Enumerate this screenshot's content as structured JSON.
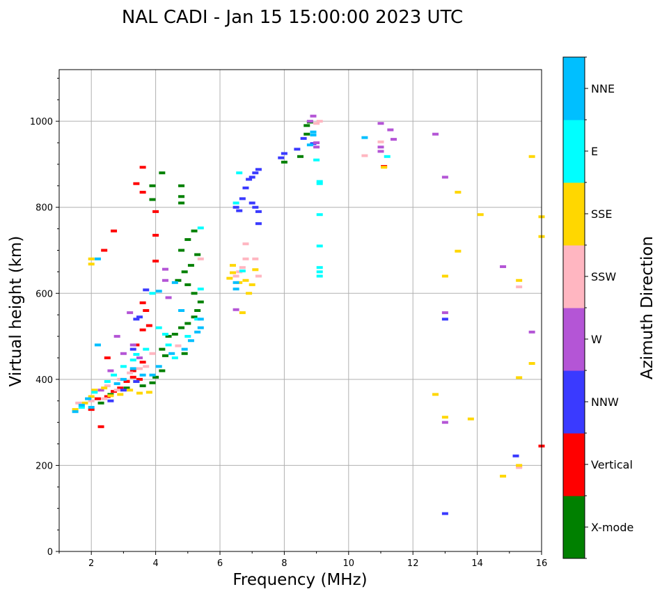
{
  "chart_data": {
    "type": "scatter",
    "title": "NAL CADI - Jan 15 15:00:00 2023 UTC",
    "xlabel": "Frequency (MHz)",
    "ylabel": "Virtual height (km)",
    "xlim": [
      1,
      16
    ],
    "ylim": [
      0,
      1120
    ],
    "xticks": [
      2,
      4,
      6,
      8,
      10,
      12,
      14,
      16
    ],
    "yticks": [
      0,
      200,
      400,
      600,
      800,
      1000
    ],
    "grid": true,
    "colorbar": {
      "label": "Azimuth Direction",
      "position": "right",
      "categories": [
        {
          "name": "X-mode",
          "color": "#008000"
        },
        {
          "name": "Vertical",
          "color": "#ff0000"
        },
        {
          "name": "NNW",
          "color": "#3a3aff"
        },
        {
          "name": "W",
          "color": "#b455d6"
        },
        {
          "name": "SSW",
          "color": "#ffb6c1"
        },
        {
          "name": "SSE",
          "color": "#ffd700"
        },
        {
          "name": "E",
          "color": "#00ffff"
        },
        {
          "name": "NNE",
          "color": "#00bfff"
        }
      ]
    },
    "series": [
      {
        "name": "X-mode",
        "points": [
          [
            2.3,
            345
          ],
          [
            2.6,
            365
          ],
          [
            3.1,
            380
          ],
          [
            3.4,
            395
          ],
          [
            3.6,
            385
          ],
          [
            3.9,
            392
          ],
          [
            4.0,
            405
          ],
          [
            4.2,
            420
          ],
          [
            4.3,
            455
          ],
          [
            4.2,
            470
          ],
          [
            4.4,
            500
          ],
          [
            4.6,
            505
          ],
          [
            4.8,
            520
          ],
          [
            4.9,
            460
          ],
          [
            5.0,
            530
          ],
          [
            5.2,
            545
          ],
          [
            5.3,
            560
          ],
          [
            5.4,
            580
          ],
          [
            5.2,
            600
          ],
          [
            5.0,
            620
          ],
          [
            4.7,
            630
          ],
          [
            4.9,
            650
          ],
          [
            5.1,
            665
          ],
          [
            5.3,
            690
          ],
          [
            4.8,
            700
          ],
          [
            5.0,
            725
          ],
          [
            5.2,
            745
          ],
          [
            4.8,
            810
          ],
          [
            4.8,
            825
          ],
          [
            4.8,
            850
          ],
          [
            4.2,
            880
          ],
          [
            3.9,
            818
          ],
          [
            3.9,
            850
          ],
          [
            8.0,
            905
          ],
          [
            8.5,
            918
          ],
          [
            8.7,
            970
          ],
          [
            8.7,
            990
          ],
          [
            8.8,
            998
          ]
        ]
      },
      {
        "name": "Vertical",
        "points": [
          [
            2.0,
            330
          ],
          [
            2.2,
            355
          ],
          [
            2.5,
            360
          ],
          [
            2.7,
            372
          ],
          [
            2.9,
            380
          ],
          [
            3.1,
            395
          ],
          [
            3.3,
            405
          ],
          [
            3.5,
            400
          ],
          [
            3.3,
            420
          ],
          [
            3.6,
            440
          ],
          [
            3.4,
            480
          ],
          [
            3.6,
            515
          ],
          [
            3.8,
            525
          ],
          [
            3.7,
            560
          ],
          [
            3.6,
            578
          ],
          [
            4.0,
            675
          ],
          [
            4.0,
            735
          ],
          [
            4.0,
            790
          ],
          [
            3.6,
            835
          ],
          [
            3.4,
            855
          ],
          [
            3.6,
            893
          ],
          [
            2.7,
            745
          ],
          [
            2.4,
            700
          ],
          [
            2.5,
            450
          ],
          [
            2.3,
            290
          ],
          [
            11.1,
            895
          ],
          [
            16,
            245
          ]
        ]
      },
      {
        "name": "NNW",
        "points": [
          [
            2.6,
            350
          ],
          [
            3.0,
            375
          ],
          [
            3.4,
            395
          ],
          [
            3.3,
            470
          ],
          [
            3.4,
            540
          ],
          [
            3.5,
            545
          ],
          [
            3.7,
            608
          ],
          [
            6.5,
            800
          ],
          [
            6.7,
            820
          ],
          [
            6.8,
            845
          ],
          [
            6.9,
            865
          ],
          [
            7.0,
            870
          ],
          [
            7.1,
            880
          ],
          [
            7.2,
            888
          ],
          [
            7.0,
            810
          ],
          [
            7.1,
            800
          ],
          [
            7.2,
            790
          ],
          [
            7.2,
            762
          ],
          [
            6.6,
            792
          ],
          [
            7.9,
            915
          ],
          [
            8.0,
            925
          ],
          [
            8.4,
            935
          ],
          [
            8.6,
            960
          ],
          [
            8.9,
            948
          ],
          [
            13.0,
            540
          ],
          [
            13.0,
            88
          ],
          [
            15.2,
            222
          ]
        ]
      },
      {
        "name": "W",
        "points": [
          [
            2.3,
            375
          ],
          [
            2.6,
            420
          ],
          [
            2.8,
            500
          ],
          [
            3.0,
            460
          ],
          [
            3.2,
            555
          ],
          [
            3.3,
            480
          ],
          [
            3.5,
            450
          ],
          [
            4.3,
            630
          ],
          [
            4.4,
            590
          ],
          [
            4.3,
            656
          ],
          [
            6.5,
            562
          ],
          [
            8.8,
            1000
          ],
          [
            8.9,
            1012
          ],
          [
            9.0,
            950
          ],
          [
            9.0,
            940
          ],
          [
            11.0,
            995
          ],
          [
            11.3,
            980
          ],
          [
            11.0,
            940
          ],
          [
            11.0,
            930
          ],
          [
            11.4,
            958
          ],
          [
            12.7,
            970
          ],
          [
            13.0,
            870
          ],
          [
            13.0,
            555
          ],
          [
            13.0,
            300
          ],
          [
            14.8,
            662
          ],
          [
            15.7,
            510
          ]
        ]
      },
      {
        "name": "SSW",
        "points": [
          [
            1.6,
            345
          ],
          [
            2.0,
            350
          ],
          [
            2.4,
            355
          ],
          [
            2.5,
            385
          ],
          [
            2.8,
            375
          ],
          [
            2.9,
            400
          ],
          [
            3.2,
            415
          ],
          [
            3.5,
            425
          ],
          [
            3.7,
            430
          ],
          [
            3.9,
            460
          ],
          [
            4.7,
            478
          ],
          [
            5.4,
            680
          ],
          [
            6.5,
            640
          ],
          [
            6.6,
            650
          ],
          [
            6.7,
            660
          ],
          [
            6.8,
            680
          ],
          [
            6.8,
            715
          ],
          [
            7.1,
            680
          ],
          [
            7.2,
            640
          ],
          [
            9.0,
            995
          ],
          [
            9.1,
            1000
          ],
          [
            10.5,
            920
          ],
          [
            11.0,
            952
          ],
          [
            15.3,
            615
          ],
          [
            15.3,
            198
          ],
          [
            15.3,
            195
          ]
        ]
      },
      {
        "name": "SSE",
        "points": [
          [
            1.5,
            330
          ],
          [
            1.8,
            345
          ],
          [
            2.0,
            360
          ],
          [
            2.1,
            375
          ],
          [
            2.4,
            380
          ],
          [
            2.6,
            362
          ],
          [
            2.9,
            365
          ],
          [
            3.2,
            375
          ],
          [
            3.5,
            368
          ],
          [
            3.8,
            370
          ],
          [
            6.3,
            635
          ],
          [
            6.4,
            648
          ],
          [
            6.4,
            665
          ],
          [
            6.6,
            625
          ],
          [
            6.8,
            630
          ],
          [
            6.9,
            600
          ],
          [
            7.0,
            620
          ],
          [
            7.1,
            655
          ],
          [
            6.7,
            555
          ],
          [
            2.0,
            668
          ],
          [
            2.0,
            680
          ],
          [
            11.1,
            893
          ],
          [
            13.0,
            640
          ],
          [
            13.0,
            312
          ],
          [
            13.4,
            835
          ],
          [
            13.4,
            698
          ],
          [
            12.7,
            365
          ],
          [
            13.8,
            308
          ],
          [
            14.1,
            783
          ],
          [
            14.8,
            175
          ],
          [
            15.3,
            404
          ],
          [
            15.3,
            200
          ],
          [
            15.3,
            630
          ],
          [
            15.7,
            918
          ],
          [
            15.7,
            437
          ],
          [
            16,
            778
          ],
          [
            16,
            732
          ]
        ]
      },
      {
        "name": "E",
        "points": [
          [
            1.7,
            335
          ],
          [
            2.1,
            370
          ],
          [
            2.5,
            395
          ],
          [
            2.7,
            410
          ],
          [
            3.0,
            430
          ],
          [
            3.3,
            445
          ],
          [
            3.4,
            458
          ],
          [
            3.7,
            470
          ],
          [
            3.9,
            600
          ],
          [
            4.1,
            520
          ],
          [
            4.3,
            505
          ],
          [
            4.4,
            480
          ],
          [
            4.6,
            450
          ],
          [
            5.0,
            500
          ],
          [
            5.3,
            540
          ],
          [
            5.4,
            610
          ],
          [
            5.4,
            752
          ],
          [
            6.6,
            880
          ],
          [
            6.5,
            810
          ],
          [
            6.7,
            652
          ],
          [
            9.0,
            910
          ],
          [
            9.1,
            860
          ],
          [
            9.1,
            855
          ],
          [
            9.1,
            783
          ],
          [
            9.1,
            710
          ],
          [
            9.1,
            660
          ],
          [
            9.1,
            650
          ],
          [
            9.1,
            640
          ],
          [
            11.2,
            918
          ]
        ]
      },
      {
        "name": "NNE",
        "points": [
          [
            1.5,
            325
          ],
          [
            1.7,
            340
          ],
          [
            1.9,
            355
          ],
          [
            2.0,
            335
          ],
          [
            2.2,
            480
          ],
          [
            2.8,
            390
          ],
          [
            3.0,
            400
          ],
          [
            3.3,
            425
          ],
          [
            3.6,
            410
          ],
          [
            3.9,
            410
          ],
          [
            4.1,
            430
          ],
          [
            4.5,
            460
          ],
          [
            4.9,
            470
          ],
          [
            5.1,
            490
          ],
          [
            5.3,
            510
          ],
          [
            5.4,
            520
          ],
          [
            5.4,
            540
          ],
          [
            4.8,
            560
          ],
          [
            4.6,
            625
          ],
          [
            4.1,
            605
          ],
          [
            2.2,
            680
          ],
          [
            6.5,
            610
          ],
          [
            6.5,
            625
          ],
          [
            8.8,
            945
          ],
          [
            8.9,
            975
          ],
          [
            8.9,
            968
          ],
          [
            10.5,
            962
          ]
        ]
      }
    ]
  }
}
